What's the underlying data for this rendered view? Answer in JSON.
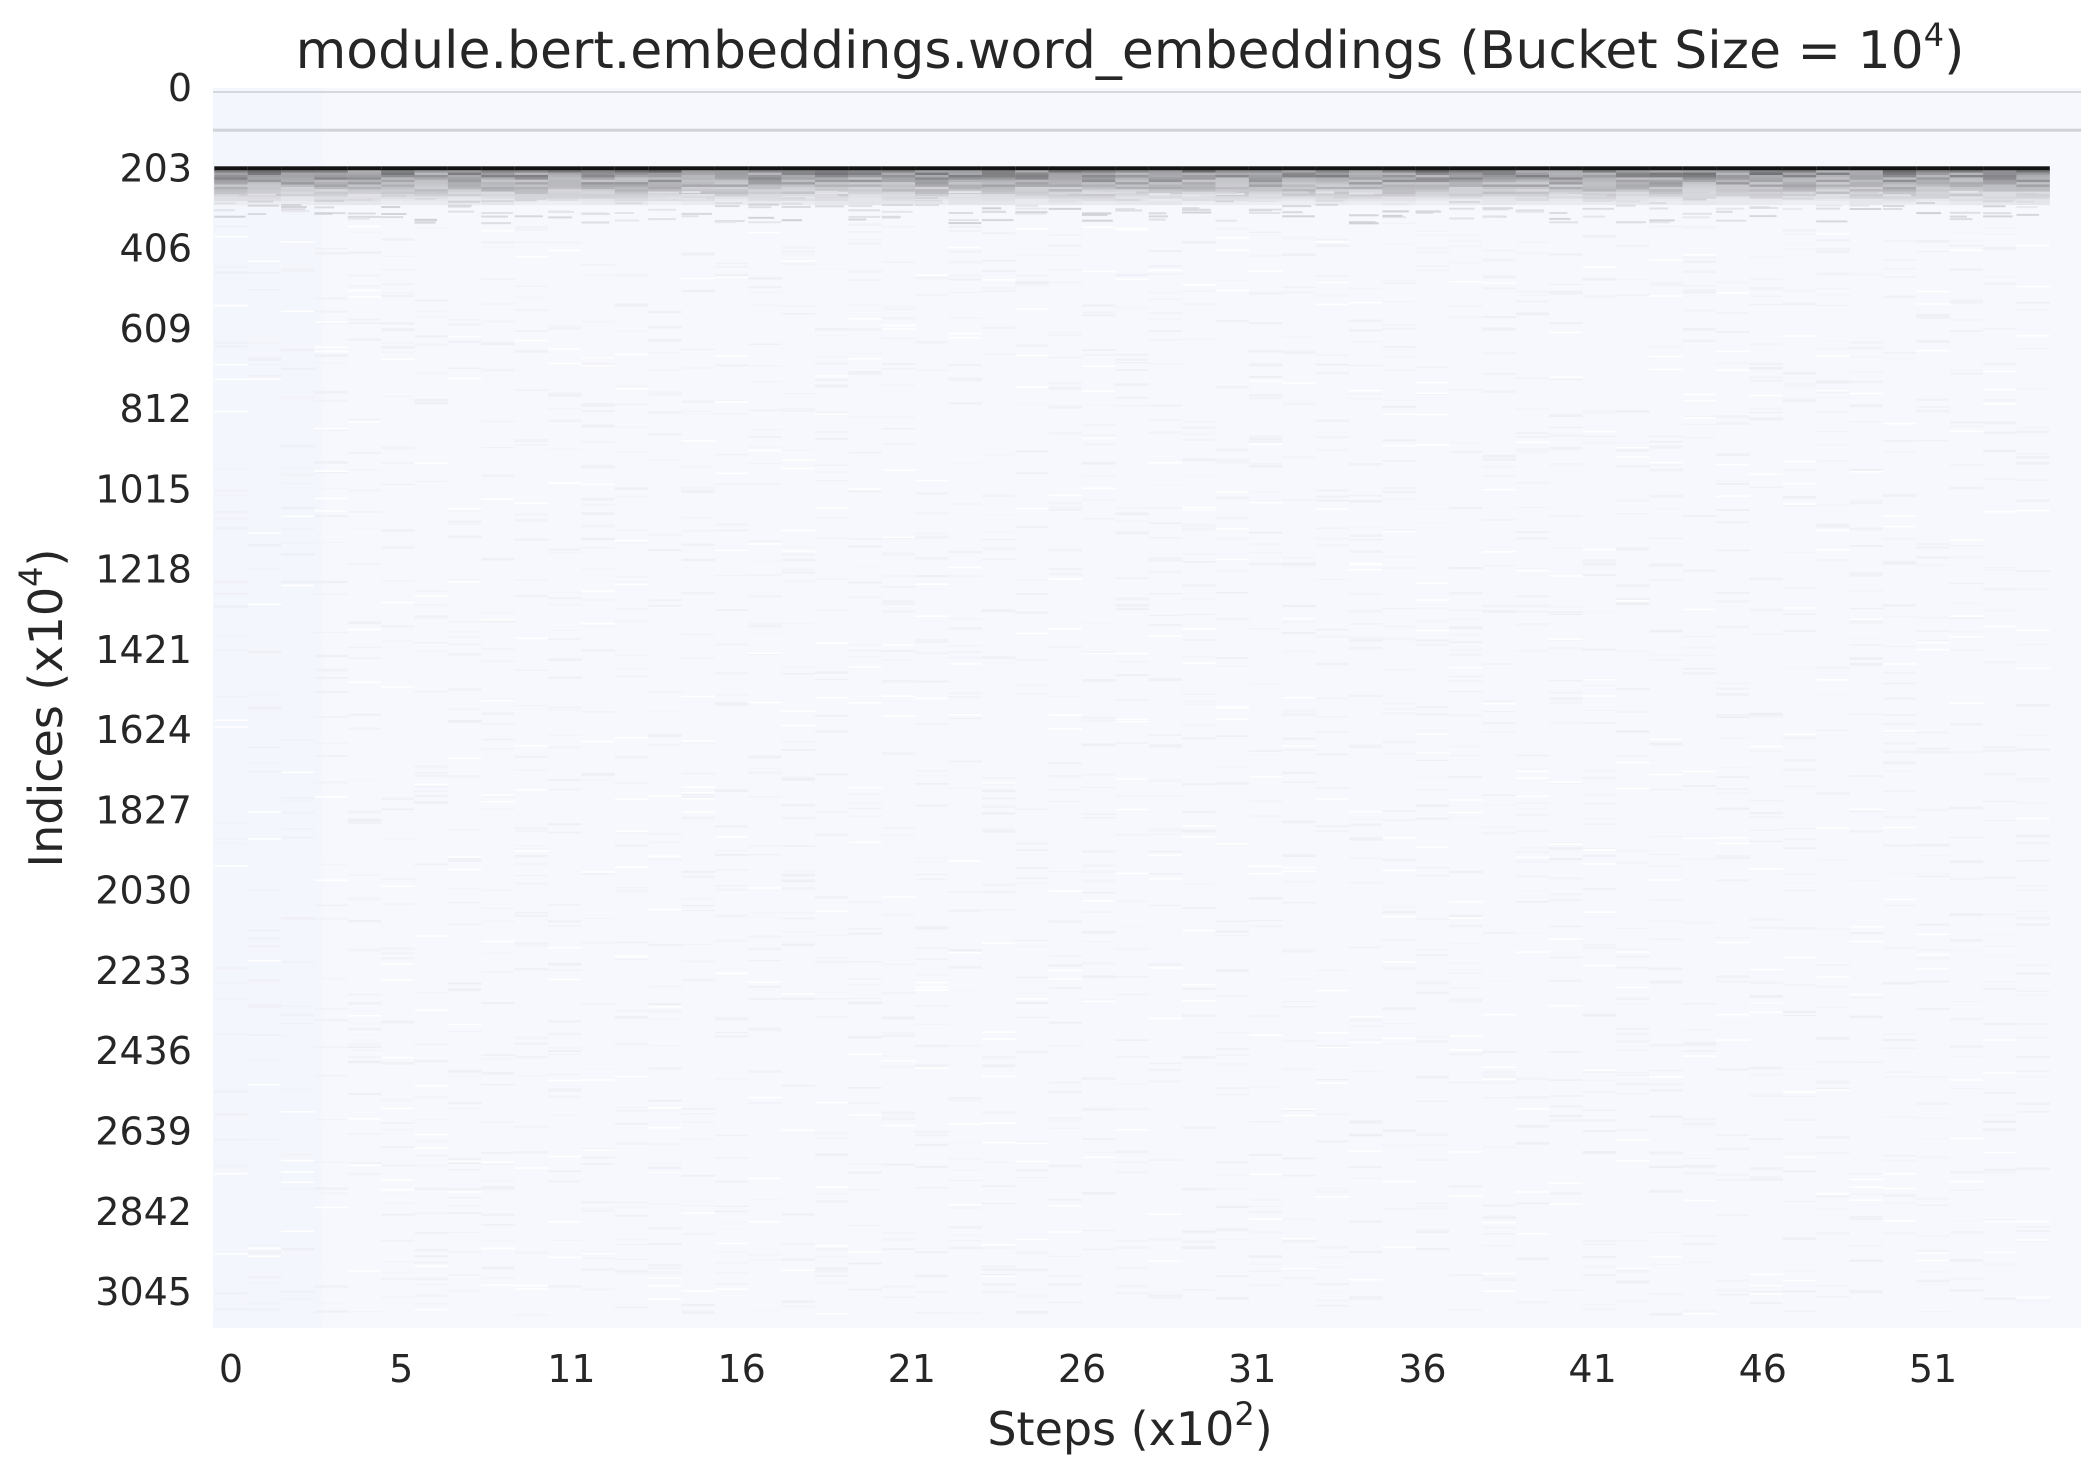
{
  "chart_data": {
    "type": "heatmap",
    "title": {
      "prefix": "module.bert.embeddings.word_embeddings (Bucket Size = 10",
      "superscript": "4",
      "suffix": ")"
    },
    "xlabel": {
      "prefix": "Steps (x10",
      "superscript": "2",
      "suffix": ")"
    },
    "ylabel": {
      "prefix": "Indices (x10",
      "superscript": "4",
      "suffix": ")"
    },
    "x_ticks": [
      "0",
      "5",
      "11",
      "16",
      "21",
      "26",
      "31",
      "36",
      "41",
      "46",
      "51"
    ],
    "y_ticks": [
      "0",
      "203",
      "406",
      "609",
      "812",
      "1015",
      "1218",
      "1421",
      "1624",
      "1827",
      "2030",
      "2233",
      "2436",
      "2639",
      "2842",
      "3045"
    ],
    "xlim": [
      0,
      55
    ],
    "ylim": [
      0,
      3110
    ],
    "colormap": "light-blue-white to black",
    "colors": {
      "background_cell": "#f7f8fe",
      "dense": "#111111"
    },
    "highlight_rows": [
      {
        "index": 110,
        "intensity": 0.25
      },
      {
        "index": 203,
        "intensity": 1.0
      }
    ],
    "grid": false
  }
}
